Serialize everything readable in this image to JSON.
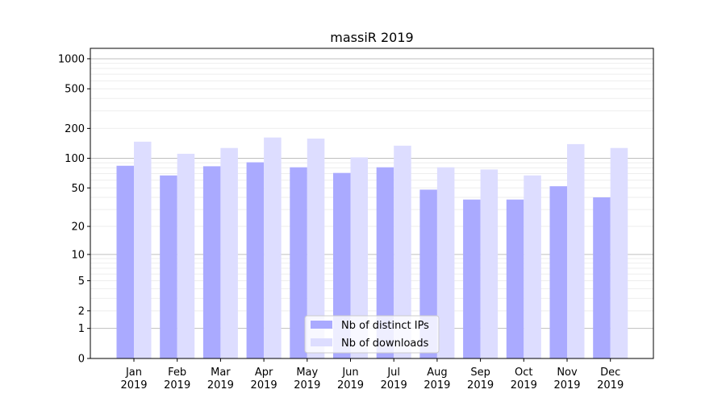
{
  "chart_data": {
    "type": "bar",
    "title": "massiR 2019",
    "xlabel": "",
    "ylabel": "",
    "yscale": "log(1+x)",
    "ylim": [
      0,
      1200
    ],
    "yticks": [
      0,
      1,
      2,
      5,
      10,
      20,
      50,
      100,
      200,
      500,
      1000
    ],
    "grid": true,
    "legend_position": "bottom-center",
    "categories": [
      "Jan\n2019",
      "Feb\n2019",
      "Mar\n2019",
      "Apr\n2019",
      "May\n2019",
      "Jun\n2019",
      "Jul\n2019",
      "Aug\n2019",
      "Sep\n2019",
      "Oct\n2019",
      "Nov\n2019",
      "Dec\n2019"
    ],
    "series": [
      {
        "name": "Nb of distinct IPs",
        "color": "#aaaaff",
        "values": [
          84,
          67,
          83,
          91,
          81,
          71,
          81,
          48,
          38,
          38,
          52,
          40
        ]
      },
      {
        "name": "Nb of downloads",
        "color": "#ddddff",
        "values": [
          147,
          111,
          127,
          162,
          158,
          102,
          134,
          81,
          77,
          67,
          139,
          127
        ]
      }
    ]
  }
}
